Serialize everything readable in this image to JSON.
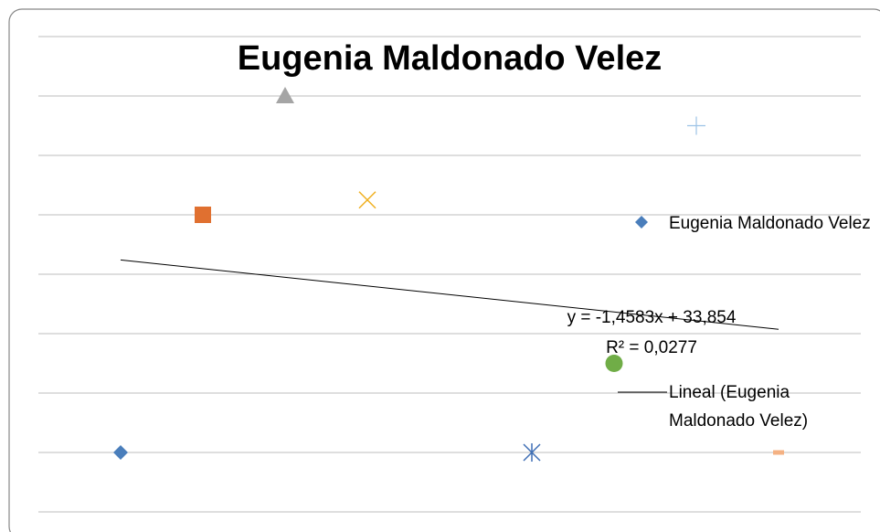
{
  "chart_data": {
    "type": "scatter",
    "title": "Eugenia Maldonado Velez",
    "xlim": [
      0,
      10
    ],
    "ylim": [
      -10,
      70
    ],
    "yticks": [
      -10,
      0,
      10,
      20,
      30,
      40,
      50,
      60,
      70
    ],
    "grid": true,
    "series": [
      {
        "name": "Eugenia Maldonado Velez",
        "color": "#4f81bd",
        "x": [
          1,
          2,
          3,
          4,
          6,
          7,
          8,
          9
        ],
        "values": [
          0,
          40,
          60,
          42.5,
          0,
          15,
          55,
          0
        ],
        "markers": [
          "diamond",
          "square",
          "triangle",
          "x",
          "star",
          "circle",
          "plus",
          "dash"
        ],
        "colors": [
          "#4a7ebb",
          "#e07030",
          "#a5a5a5",
          "#f0b020",
          "#3f6fb5",
          "#70ad47",
          "#9dc3e6",
          "#f4b183"
        ]
      }
    ],
    "trendline": {
      "name": "Lineal (Eugenia Maldonado Velez)",
      "slope": -1.4583,
      "intercept": 33.854,
      "equation": "y = -1,4583x + 33,854",
      "r2_label": "R² = 0,0277",
      "color": "#000000"
    },
    "legend": "right"
  }
}
